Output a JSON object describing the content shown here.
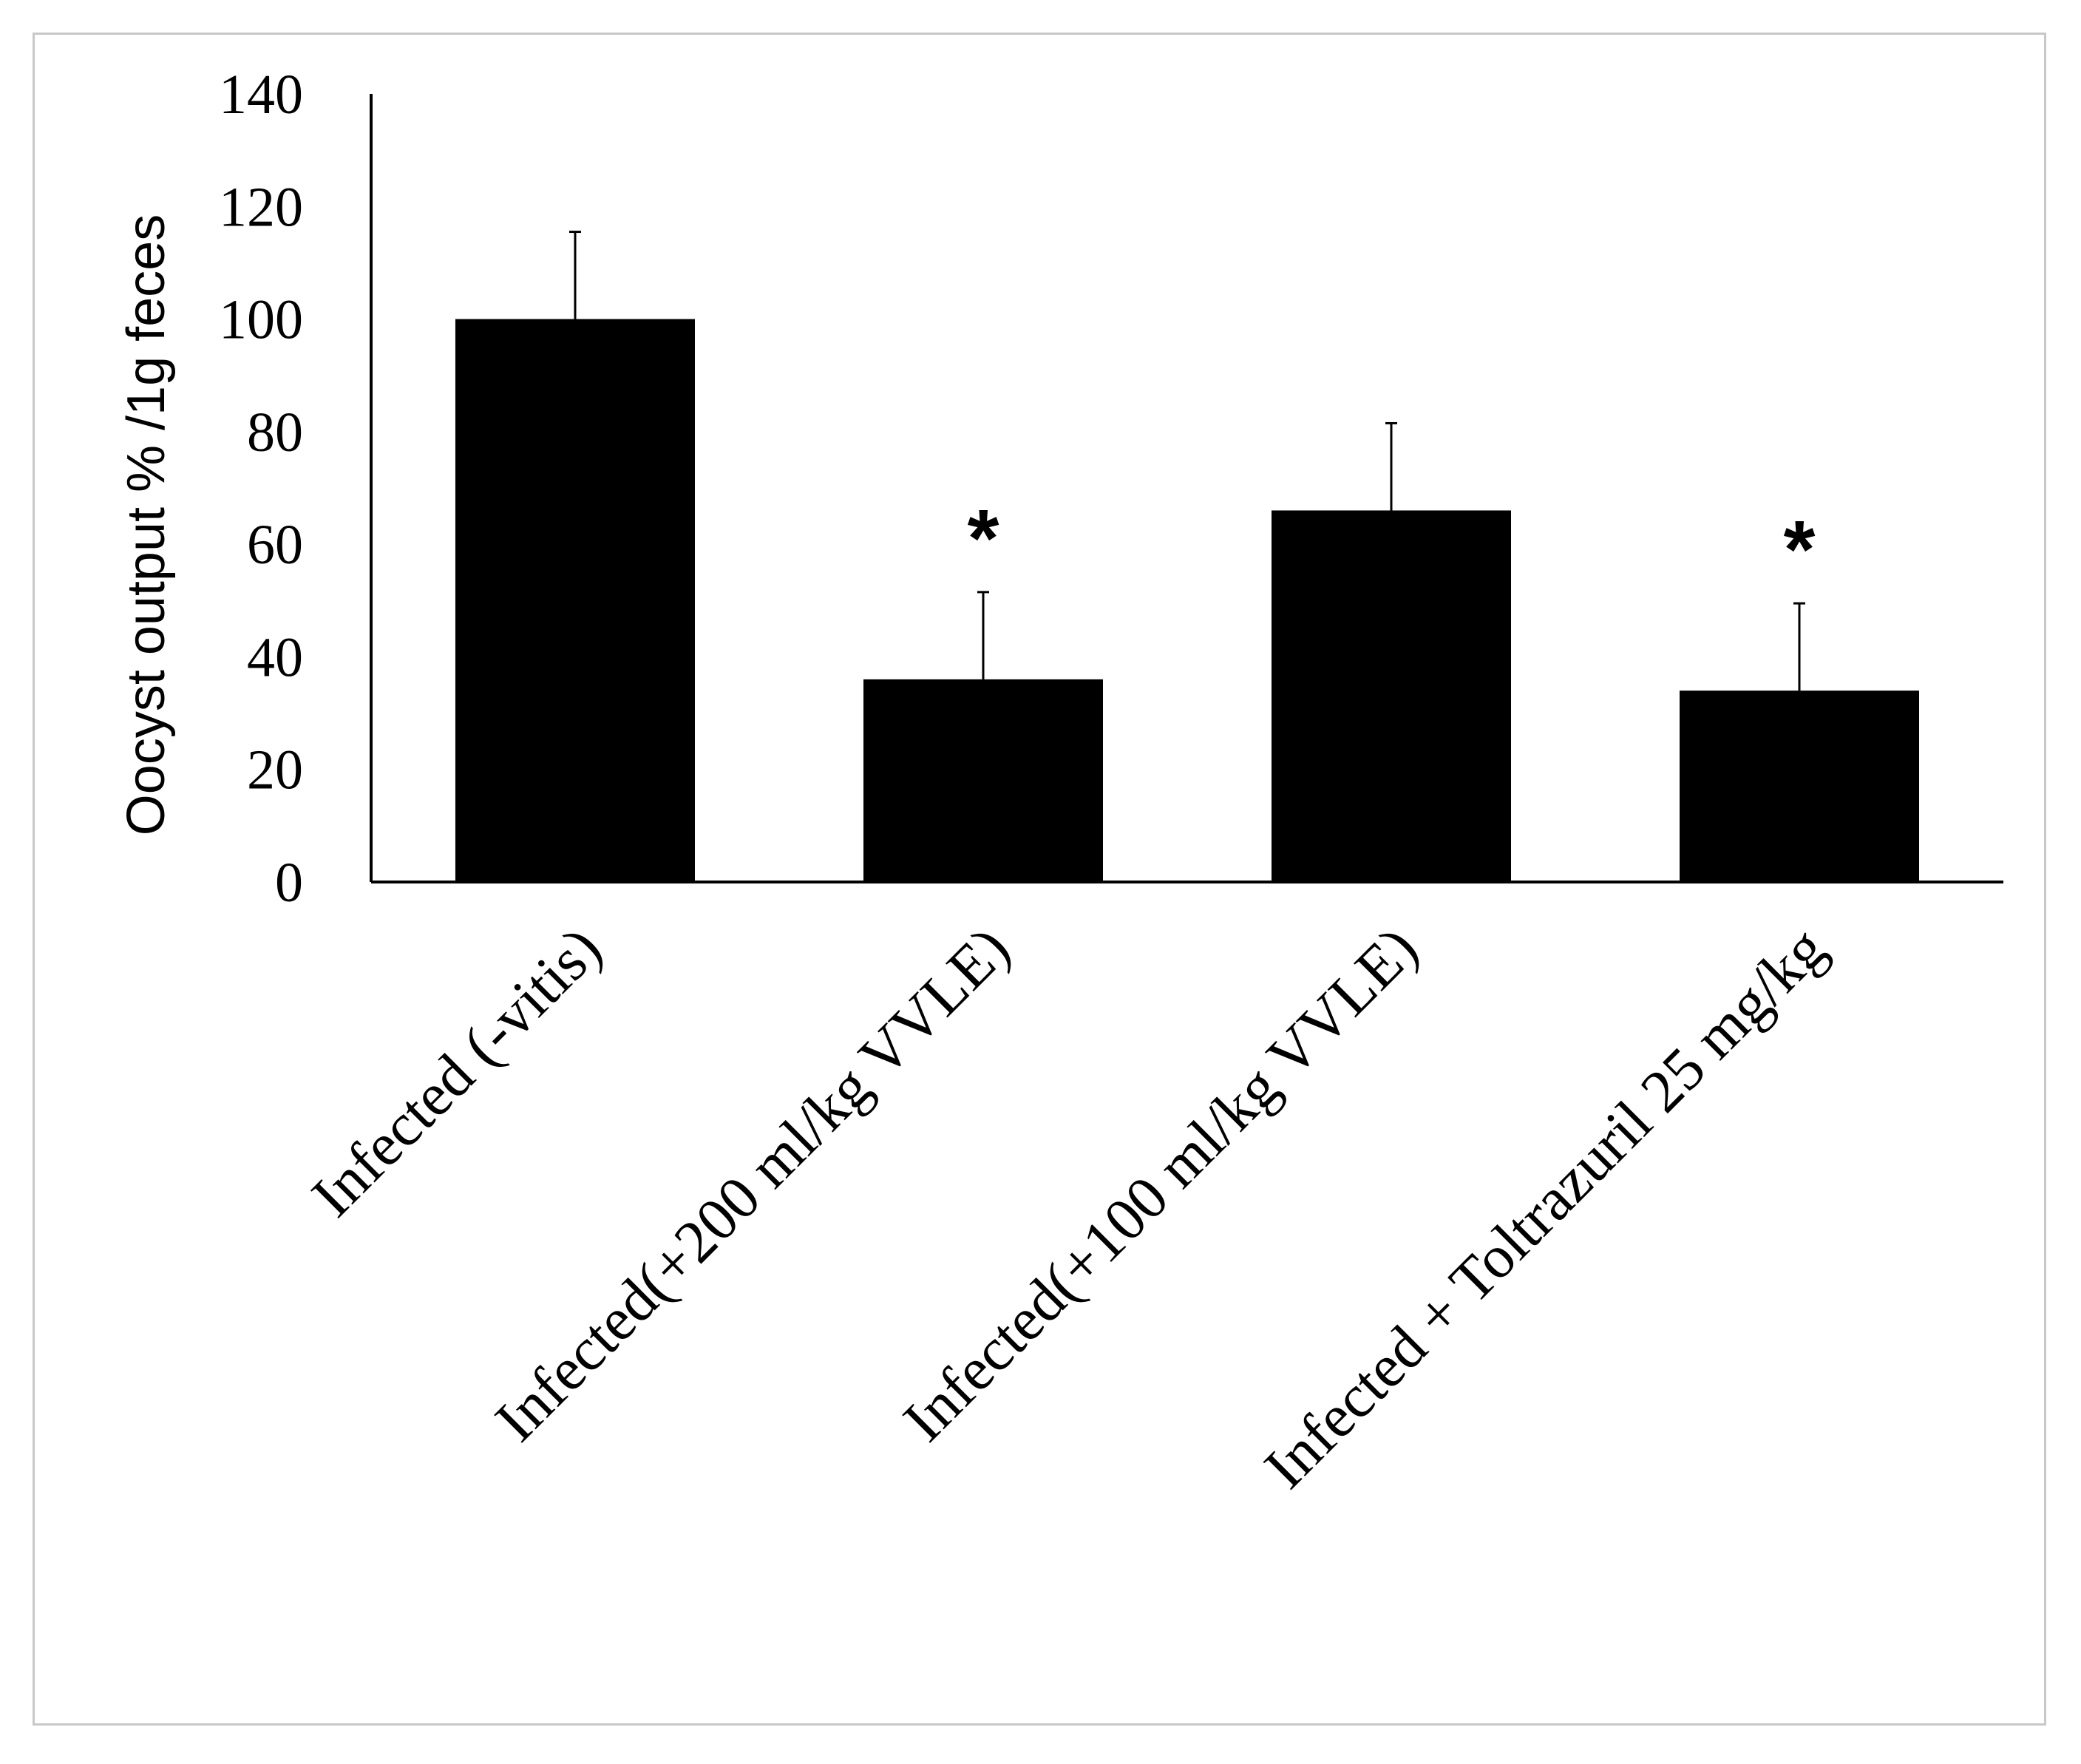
{
  "chart_data": {
    "type": "bar",
    "title": "",
    "xlabel": "",
    "ylabel": "Oocyst output %  /1g feces",
    "ylim": [
      0,
      140
    ],
    "yticks": [
      0,
      20,
      40,
      60,
      80,
      100,
      120,
      140
    ],
    "categories": [
      "Infected (-vitis)",
      "Infected(+200 ml/kg VVLE)",
      "Infected(+100 ml/kg VVLE)",
      "Infected + Toltrazuril 25 mg/kg"
    ],
    "values": [
      100,
      36,
      66,
      34
    ],
    "error_plus": [
      15.5,
      15.5,
      15.5,
      15.5
    ],
    "annotations": [
      "",
      "*",
      "",
      "*"
    ],
    "bar_color": "#000000",
    "grid": false,
    "legend": "none"
  }
}
